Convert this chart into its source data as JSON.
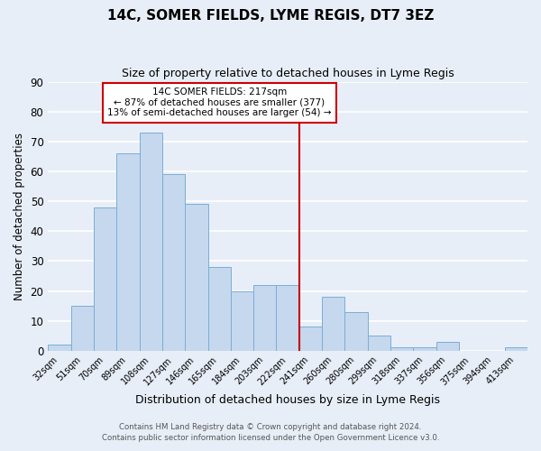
{
  "title": "14C, SOMER FIELDS, LYME REGIS, DT7 3EZ",
  "subtitle": "Size of property relative to detached houses in Lyme Regis",
  "xlabel": "Distribution of detached houses by size in Lyme Regis",
  "ylabel": "Number of detached properties",
  "bar_color": "#c5d8ee",
  "bar_edge_color": "#7aaed6",
  "categories": [
    "32sqm",
    "51sqm",
    "70sqm",
    "89sqm",
    "108sqm",
    "127sqm",
    "146sqm",
    "165sqm",
    "184sqm",
    "203sqm",
    "222sqm",
    "241sqm",
    "260sqm",
    "280sqm",
    "299sqm",
    "318sqm",
    "337sqm",
    "356sqm",
    "375sqm",
    "394sqm",
    "413sqm"
  ],
  "values": [
    2,
    15,
    48,
    66,
    73,
    59,
    49,
    28,
    20,
    22,
    22,
    8,
    18,
    13,
    5,
    1,
    1,
    3,
    0,
    0,
    1
  ],
  "ylim": [
    0,
    90
  ],
  "yticks": [
    0,
    10,
    20,
    30,
    40,
    50,
    60,
    70,
    80,
    90
  ],
  "property_line_x": 10.5,
  "property_line_color": "#cc0000",
  "annotation_title": "14C SOMER FIELDS: 217sqm",
  "annotation_line1": "← 87% of detached houses are smaller (377)",
  "annotation_line2": "13% of semi-detached houses are larger (54) →",
  "annotation_box_color": "#ffffff",
  "annotation_box_edge": "#cc0000",
  "footnote1": "Contains HM Land Registry data © Crown copyright and database right 2024.",
  "footnote2": "Contains public sector information licensed under the Open Government Licence v3.0.",
  "background_color": "#e8eef8",
  "grid_color": "#ffffff"
}
